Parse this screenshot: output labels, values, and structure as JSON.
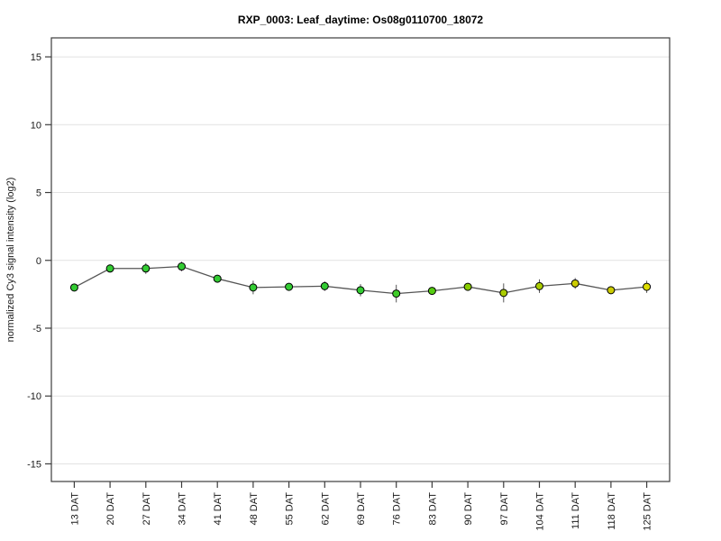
{
  "chart_data": {
    "type": "line",
    "title": "RXP_0003: Leaf_daytime: Os08g0110700_18072",
    "xlabel": "",
    "ylabel": "normalized Cy3 signal intensity (log2)",
    "ylim": [
      -16.3,
      16.4
    ],
    "yticks": [
      15,
      10,
      5,
      0,
      -5,
      -10,
      -15
    ],
    "grid": true,
    "legend_position": "none",
    "categories": [
      "13 DAT",
      "20 DAT",
      "27 DAT",
      "34 DAT",
      "41 DAT",
      "48 DAT",
      "55 DAT",
      "62 DAT",
      "69 DAT",
      "76 DAT",
      "83 DAT",
      "90 DAT",
      "97 DAT",
      "104 DAT",
      "111 DAT",
      "118 DAT",
      "125 DAT"
    ],
    "series": [
      {
        "name": "normalized Cy3 signal intensity (log2)",
        "values": [
          -2.0,
          -0.6,
          -0.6,
          -0.45,
          -1.35,
          -2.0,
          -1.95,
          -1.9,
          -2.2,
          -2.45,
          -2.25,
          -1.95,
          -2.4,
          -1.9,
          -1.7,
          -2.2,
          -1.95
        ],
        "errors": [
          0.25,
          0.3,
          0.4,
          0.35,
          0.25,
          0.5,
          0.25,
          0.35,
          0.45,
          0.65,
          0.25,
          0.25,
          0.7,
          0.5,
          0.4,
          0.2,
          0.45
        ],
        "point_colors": [
          "#33cc33",
          "#33cc33",
          "#33cc33",
          "#33cc33",
          "#33cc33",
          "#33cc33",
          "#33cc33",
          "#33cc33",
          "#33cc33",
          "#3ecc28",
          "#55cc11",
          "#88cc00",
          "#aacc00",
          "#aacc00",
          "#cccc00",
          "#cccc00",
          "#dddd00"
        ]
      }
    ],
    "colors": {
      "line": "#555555",
      "error_bar": "#555555",
      "marker_outline": "#000000",
      "grid": "#e2e2e2",
      "frame": "#3c3c3c",
      "tick": "#3c3c3c"
    }
  }
}
